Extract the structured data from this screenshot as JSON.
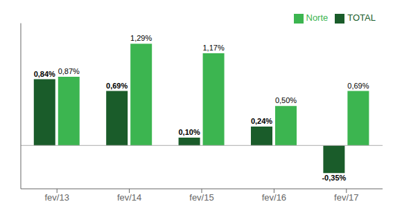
{
  "chart_data": {
    "type": "bar",
    "categories": [
      "fev/13",
      "fev/14",
      "fev/15",
      "fev/16",
      "fev/17"
    ],
    "series": [
      {
        "name": "TOTAL",
        "color": "#1a5c2a",
        "values": [
          0.84,
          0.69,
          0.1,
          0.24,
          -0.35
        ],
        "value_labels": [
          "0,84%",
          "0,69%",
          "0,10%",
          "0,24%",
          "-0,35%"
        ]
      },
      {
        "name": "Norte",
        "color": "#3cb550",
        "values": [
          0.87,
          1.29,
          1.17,
          0.5,
          0.69
        ],
        "value_labels": [
          "0,87%",
          "1,29%",
          "1,17%",
          "0,50%",
          "0,69%"
        ]
      }
    ],
    "ylim": [
      -0.55,
      1.55
    ],
    "data_labels": true,
    "tick_labels": "x",
    "legend": "upper right"
  }
}
